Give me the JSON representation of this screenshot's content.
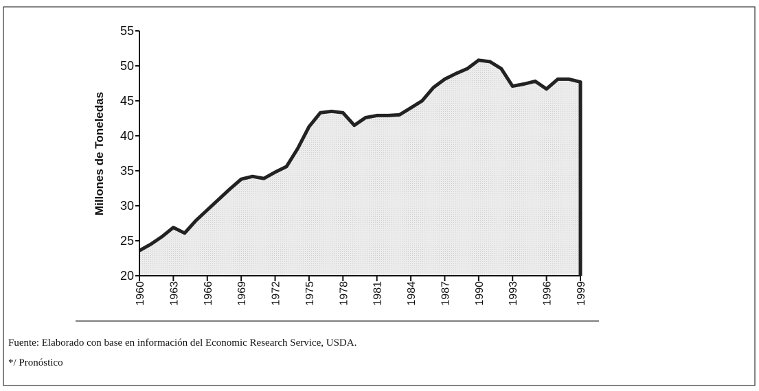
{
  "chart_data": {
    "type": "area",
    "ylabel": "Millones de Toneledas",
    "x": [
      1960,
      1961,
      1962,
      1963,
      1964,
      1965,
      1966,
      1967,
      1968,
      1969,
      1970,
      1971,
      1972,
      1973,
      1974,
      1975,
      1976,
      1977,
      1978,
      1979,
      1980,
      1981,
      1982,
      1983,
      1984,
      1985,
      1986,
      1987,
      1988,
      1989,
      1990,
      1991,
      1992,
      1993,
      1994,
      1995,
      1996,
      1997,
      1998,
      1999
    ],
    "values": [
      23.6,
      24.5,
      25.6,
      26.9,
      26.1,
      27.9,
      29.4,
      30.9,
      32.4,
      33.8,
      34.2,
      33.9,
      34.8,
      35.6,
      38.2,
      41.3,
      43.3,
      43.5,
      43.3,
      41.5,
      42.6,
      42.9,
      42.9,
      43.0,
      44.0,
      45.0,
      46.9,
      48.1,
      48.9,
      49.6,
      50.8,
      50.6,
      49.6,
      47.1,
      47.4,
      47.8,
      46.7,
      48.1,
      48.1,
      47.7
    ],
    "color": "#222222",
    "fill": "#e4e4e4",
    "xlim": [
      1960,
      1999
    ],
    "xticks": [
      1960,
      1963,
      1966,
      1969,
      1972,
      1975,
      1978,
      1981,
      1984,
      1987,
      1990,
      1993,
      1996,
      1999
    ],
    "ylim": [
      20,
      55
    ],
    "yticks": [
      20,
      25,
      30,
      35,
      40,
      45,
      50,
      55
    ],
    "source": "Fuente: Elaborado con base en información del Economic Research Service, USDA.",
    "note": "*/ Pronóstico"
  }
}
